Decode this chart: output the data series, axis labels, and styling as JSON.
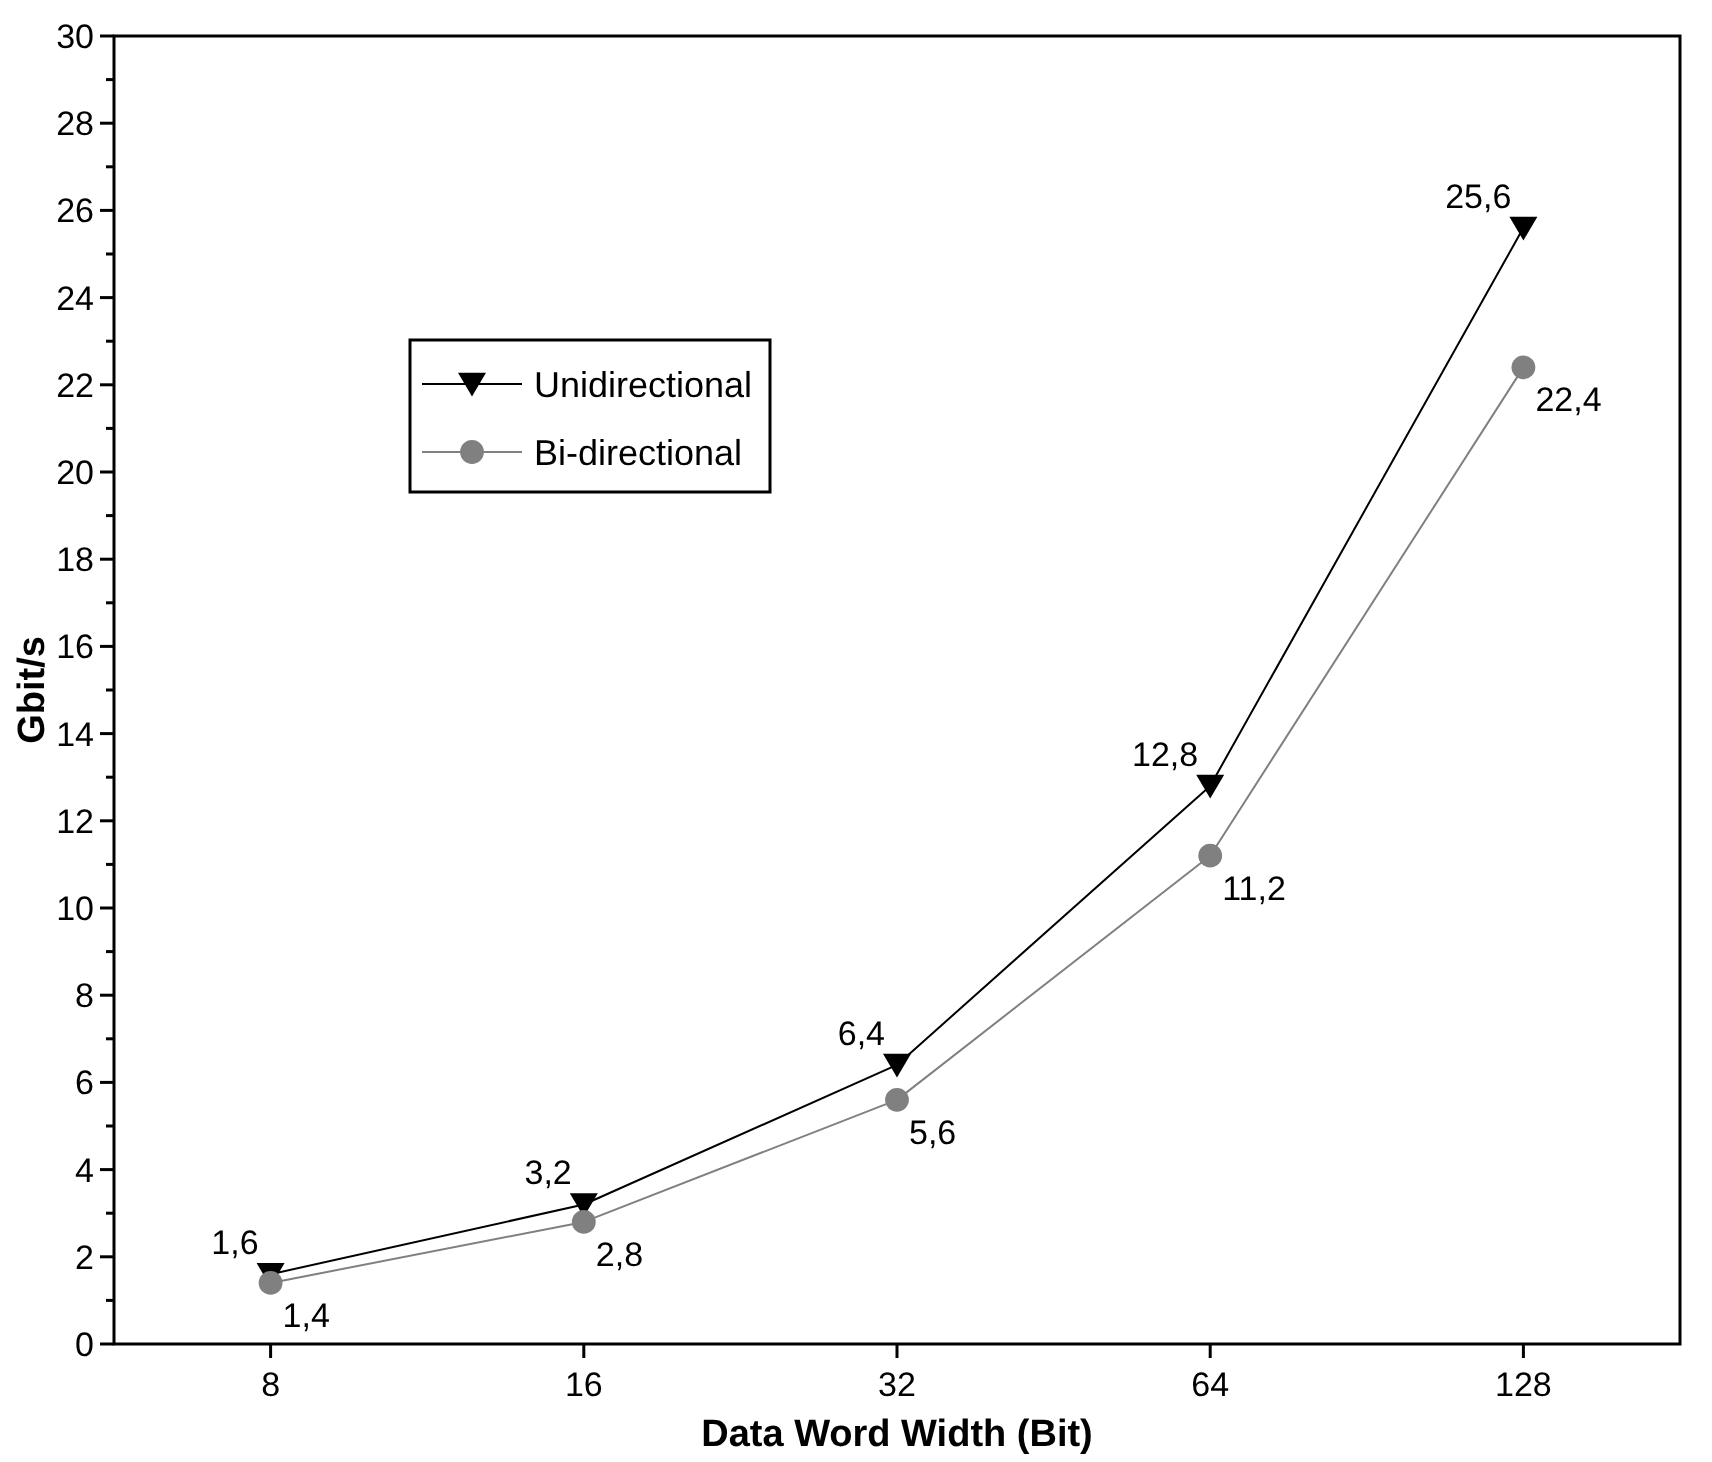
{
  "chart_data": {
    "type": "line",
    "xlabel": "Data Word Width (Bit)",
    "ylabel": "Gbit/s",
    "categories": [
      "8",
      "16",
      "32",
      "64",
      "128"
    ],
    "ylim": [
      0,
      30
    ],
    "yticks": [
      0,
      {
        "value": 1,
        "label": null
      },
      2,
      {
        "value": 3,
        "label": null
      },
      4,
      {
        "value": 5,
        "label": null
      },
      6,
      {
        "value": 7,
        "label": null
      },
      8,
      {
        "value": 9,
        "label": null
      },
      10,
      {
        "value": 11,
        "label": null
      },
      12,
      {
        "value": 13,
        "label": null
      },
      14,
      {
        "value": 15,
        "label": null
      },
      16,
      {
        "value": 17,
        "label": null
      },
      18,
      {
        "value": 19,
        "label": null
      },
      20,
      {
        "value": 21,
        "label": null
      },
      22,
      {
        "value": 23,
        "label": null
      },
      24,
      {
        "value": 25,
        "label": null
      },
      26,
      {
        "value": 27,
        "label": null
      },
      28,
      {
        "value": 29,
        "label": null
      },
      30
    ],
    "grid": false,
    "legend": "top left",
    "line_style": "solid",
    "series": [
      {
        "name": "Unidirectional",
        "color": "#000000",
        "marker": "triangle",
        "values": [
          1.6,
          3.2,
          6.4,
          12.8,
          25.6
        ],
        "value_labels": [
          "1,6",
          "3,2",
          "6,4",
          "12,8",
          "25,6"
        ]
      },
      {
        "name": "Bi-directional",
        "color": "#808080",
        "marker": "circle",
        "values": [
          1.4,
          2.8,
          5.6,
          11.2,
          22.4
        ],
        "value_labels": [
          "1,4",
          "2,8",
          "5,6",
          "11,2",
          "22,4"
        ]
      }
    ]
  }
}
